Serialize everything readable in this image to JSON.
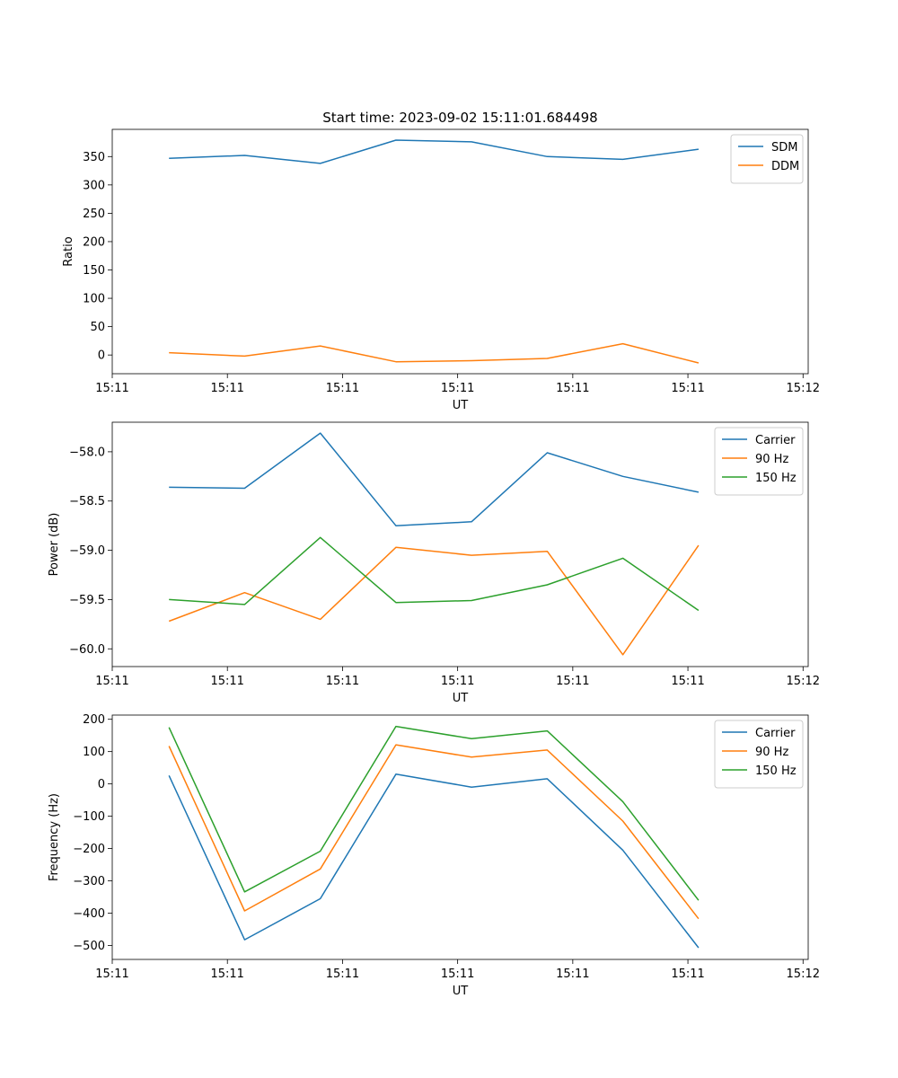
{
  "chart_data": [
    {
      "type": "line",
      "title": "Start time: 2023-09-02 15:11:01.684498",
      "xlabel": "UT",
      "ylabel": "Ratio",
      "x": [
        0,
        1,
        2,
        3,
        4,
        5,
        6,
        7
      ],
      "xlim": [
        -0.75,
        8.45
      ],
      "xticks": [
        -0.75,
        0.772,
        2.294,
        3.816,
        5.338,
        6.86,
        8.382
      ],
      "xtick_labels": [
        "15:11",
        "15:11",
        "15:11",
        "15:11",
        "15:11",
        "15:11",
        "15:12"
      ],
      "ylim": [
        -33,
        398
      ],
      "yticks": [
        0,
        50,
        100,
        150,
        200,
        250,
        300,
        350
      ],
      "ytick_labels": [
        "0",
        "50",
        "100",
        "150",
        "200",
        "250",
        "300",
        "350"
      ],
      "legend": "top-right",
      "series": [
        {
          "name": "SDM",
          "color": "#1f77b4",
          "values": [
            347,
            352,
            338,
            379,
            376,
            350,
            345,
            363
          ]
        },
        {
          "name": "DDM",
          "color": "#ff7f0e",
          "values": [
            4,
            -2,
            16,
            -12,
            -10,
            -6,
            20,
            -14
          ]
        }
      ]
    },
    {
      "type": "line",
      "title": "",
      "xlabel": "UT",
      "ylabel": "Power (dB)",
      "x": [
        0,
        1,
        2,
        3,
        4,
        5,
        6,
        7
      ],
      "xlim": [
        -0.75,
        8.45
      ],
      "xticks": [
        -0.75,
        0.772,
        2.294,
        3.816,
        5.338,
        6.86,
        8.382
      ],
      "xtick_labels": [
        "15:11",
        "15:11",
        "15:11",
        "15:11",
        "15:11",
        "15:11",
        "15:12"
      ],
      "ylim": [
        -60.18,
        -57.7
      ],
      "yticks": [
        -60.0,
        -59.5,
        -59.0,
        -58.5,
        -58.0
      ],
      "ytick_labels": [
        "−60.0",
        "−59.5",
        "−59.0",
        "−58.5",
        "−58.0"
      ],
      "legend": "top-right",
      "series": [
        {
          "name": "Carrier",
          "color": "#1f77b4",
          "values": [
            -58.36,
            -58.37,
            -57.81,
            -58.75,
            -58.71,
            -58.01,
            -58.25,
            -58.41
          ]
        },
        {
          "name": "90 Hz",
          "color": "#ff7f0e",
          "values": [
            -59.72,
            -59.43,
            -59.7,
            -58.97,
            -59.05,
            -59.01,
            -60.06,
            -58.95
          ]
        },
        {
          "name": "150 Hz",
          "color": "#2ca02c",
          "values": [
            -59.5,
            -59.55,
            -58.87,
            -59.53,
            -59.51,
            -59.35,
            -59.08,
            -59.61
          ]
        }
      ]
    },
    {
      "type": "line",
      "title": "",
      "xlabel": "UT",
      "ylabel": "Frequency (Hz)",
      "x": [
        0,
        1,
        2,
        3,
        4,
        5,
        6,
        7
      ],
      "xlim": [
        -0.75,
        8.45
      ],
      "xticks": [
        -0.75,
        0.772,
        2.294,
        3.816,
        5.338,
        6.86,
        8.382
      ],
      "xtick_labels": [
        "15:11",
        "15:11",
        "15:11",
        "15:11",
        "15:11",
        "15:11",
        "15:12"
      ],
      "ylim": [
        -543,
        213
      ],
      "yticks": [
        -500,
        -400,
        -300,
        -200,
        -100,
        0,
        100,
        200
      ],
      "ytick_labels": [
        "−500",
        "−400",
        "−300",
        "−200",
        "−100",
        "0",
        "100",
        "200"
      ],
      "legend": "top-right",
      "series": [
        {
          "name": "Carrier",
          "color": "#1f77b4",
          "values": [
            26,
            -482,
            -355,
            30,
            -10,
            16,
            -205,
            -507
          ]
        },
        {
          "name": "90 Hz",
          "color": "#ff7f0e",
          "values": [
            117,
            -393,
            -263,
            121,
            83,
            105,
            -115,
            -417
          ]
        },
        {
          "name": "150 Hz",
          "color": "#2ca02c",
          "values": [
            175,
            -334,
            -208,
            178,
            140,
            164,
            -55,
            -360
          ]
        }
      ]
    }
  ]
}
